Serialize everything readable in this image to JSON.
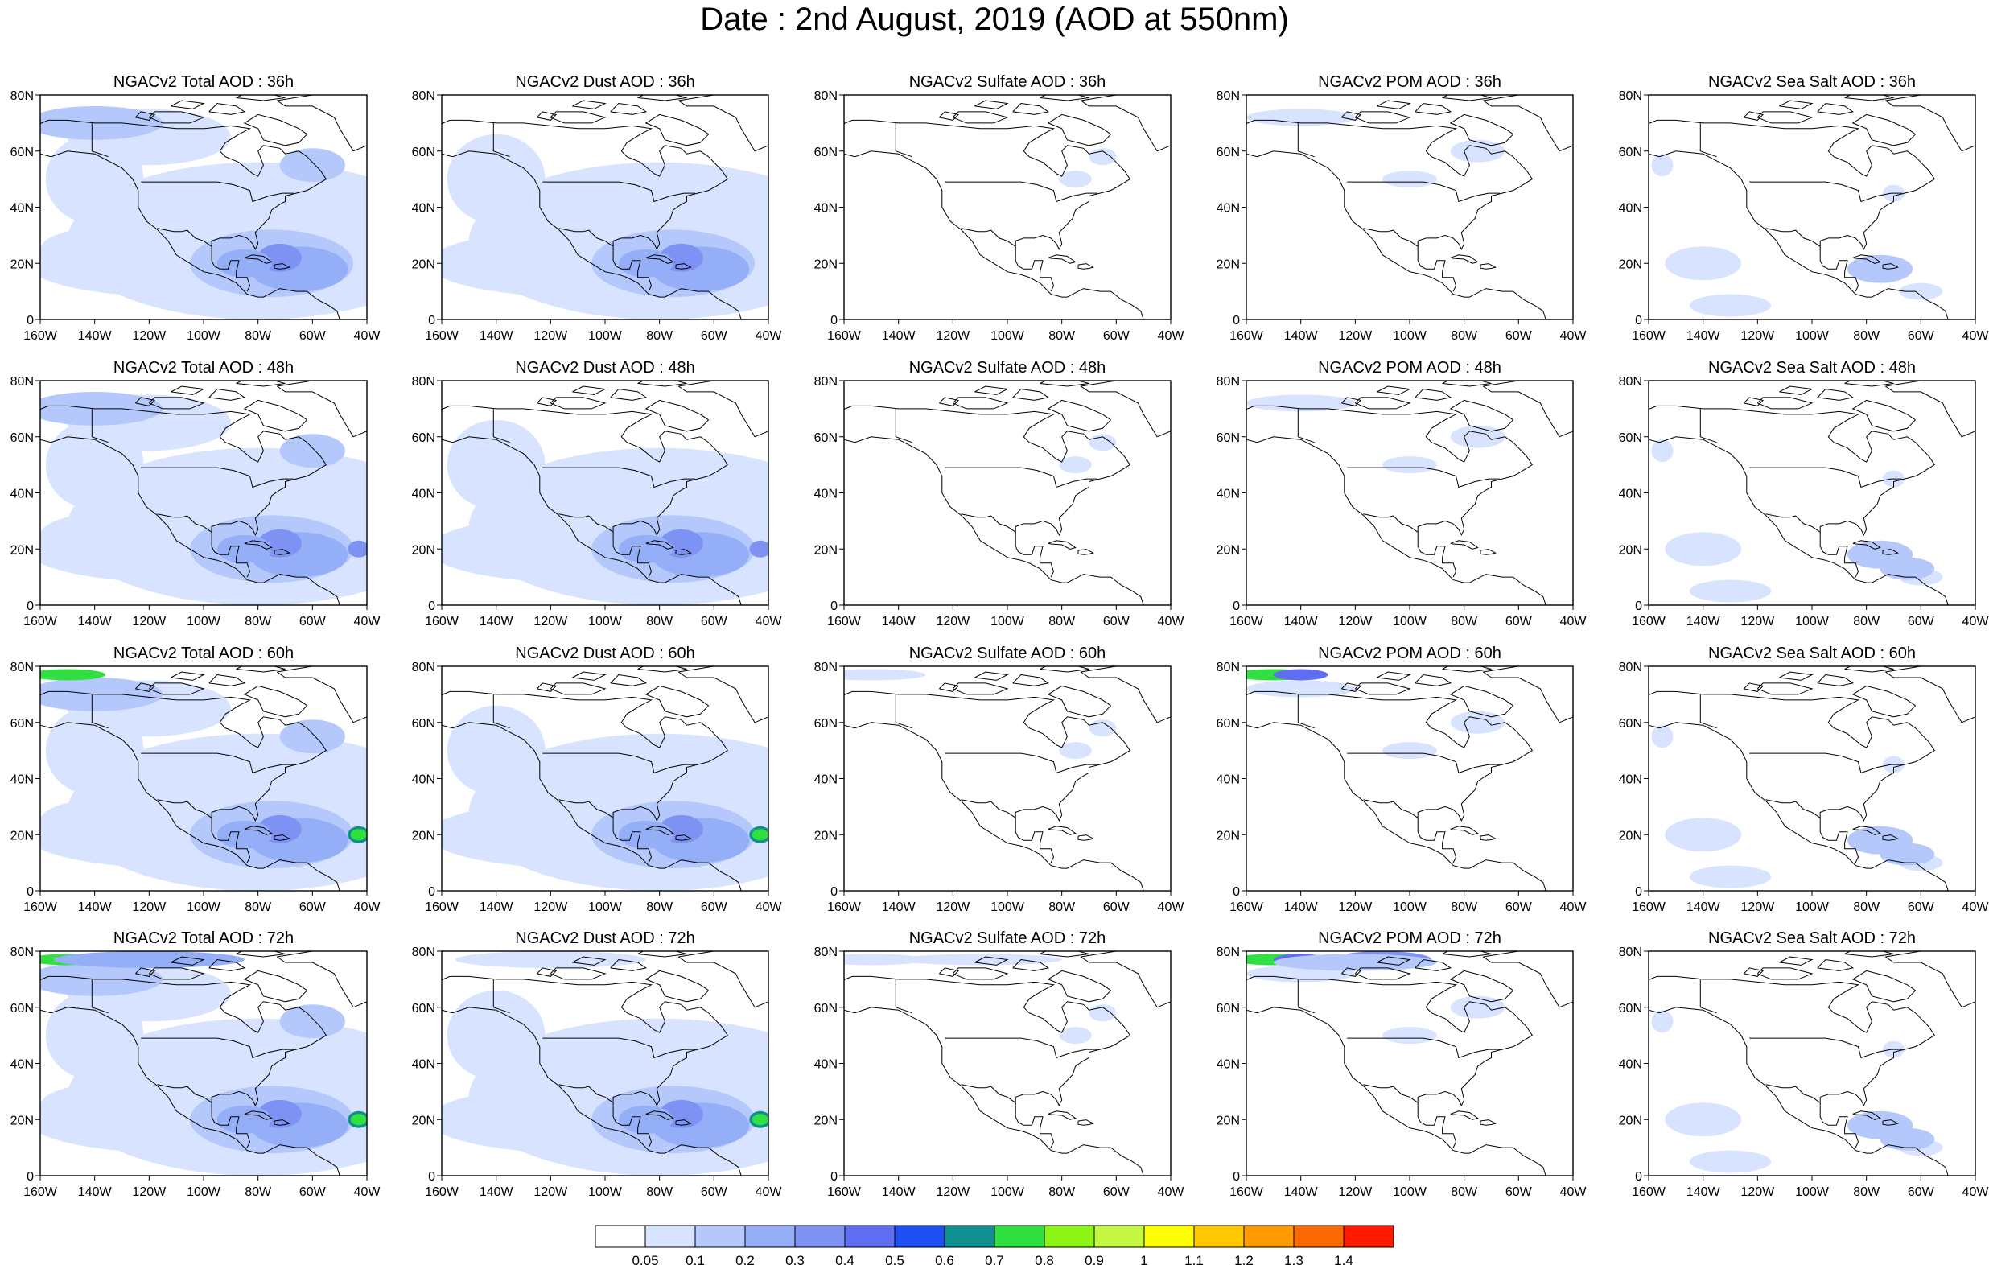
{
  "title": "Date : 2nd August, 2019 (AOD at 550nm)",
  "panel_titles": [
    [
      "NGACv2 Total AOD : 36h",
      "NGACv2 Dust AOD : 36h",
      "NGACv2 Sulfate AOD : 36h",
      "NGACv2 POM AOD : 36h",
      "NGACv2 Sea Salt AOD : 36h"
    ],
    [
      "NGACv2 Total AOD : 48h",
      "NGACv2 Dust AOD : 48h",
      "NGACv2 Sulfate AOD : 48h",
      "NGACv2 POM AOD : 48h",
      "NGACv2 Sea Salt AOD : 48h"
    ],
    [
      "NGACv2 Total AOD : 60h",
      "NGACv2 Dust AOD : 60h",
      "NGACv2 Sulfate AOD : 60h",
      "NGACv2 POM AOD : 60h",
      "NGACv2 Sea Salt AOD : 60h"
    ],
    [
      "NGACv2 Total AOD : 72h",
      "NGACv2 Dust AOD : 72h",
      "NGACv2 Sulfate AOD : 72h",
      "NGACv2 POM AOD : 72h",
      "NGACv2 Sea Salt  AOD : 72h"
    ]
  ],
  "x_tick_labels": [
    "160W",
    "140W",
    "120W",
    "100W",
    "80W",
    "60W",
    "40W"
  ],
  "y_tick_labels": [
    "0",
    "20N",
    "40N",
    "60N",
    "80N"
  ],
  "lon_range": [
    -160,
    -40
  ],
  "lat_range": [
    0,
    80
  ],
  "colorbar": {
    "labels": [
      "0.05",
      "0.1",
      "0.2",
      "0.3",
      "0.4",
      "0.5",
      "0.6",
      "0.7",
      "0.8",
      "0.9",
      "1",
      "1.1",
      "1.2",
      "1.3",
      "1.4"
    ],
    "colors": [
      "#ffffff",
      "#d7e3ff",
      "#b4c8fb",
      "#94aef8",
      "#7d92f3",
      "#5f6ef0",
      "#1d4ff2",
      "#0e9090",
      "#30e040",
      "#8cf515",
      "#c4f840",
      "#ffff00",
      "#ffc800",
      "#ff9a00",
      "#ff6a00",
      "#ff1a00"
    ]
  },
  "blob_colors": [
    "#d7e3ff",
    "#b4c8fb",
    "#94aef8",
    "#7d92f3",
    "#5f6ef0",
    "#0e9090",
    "#30e040"
  ]
}
